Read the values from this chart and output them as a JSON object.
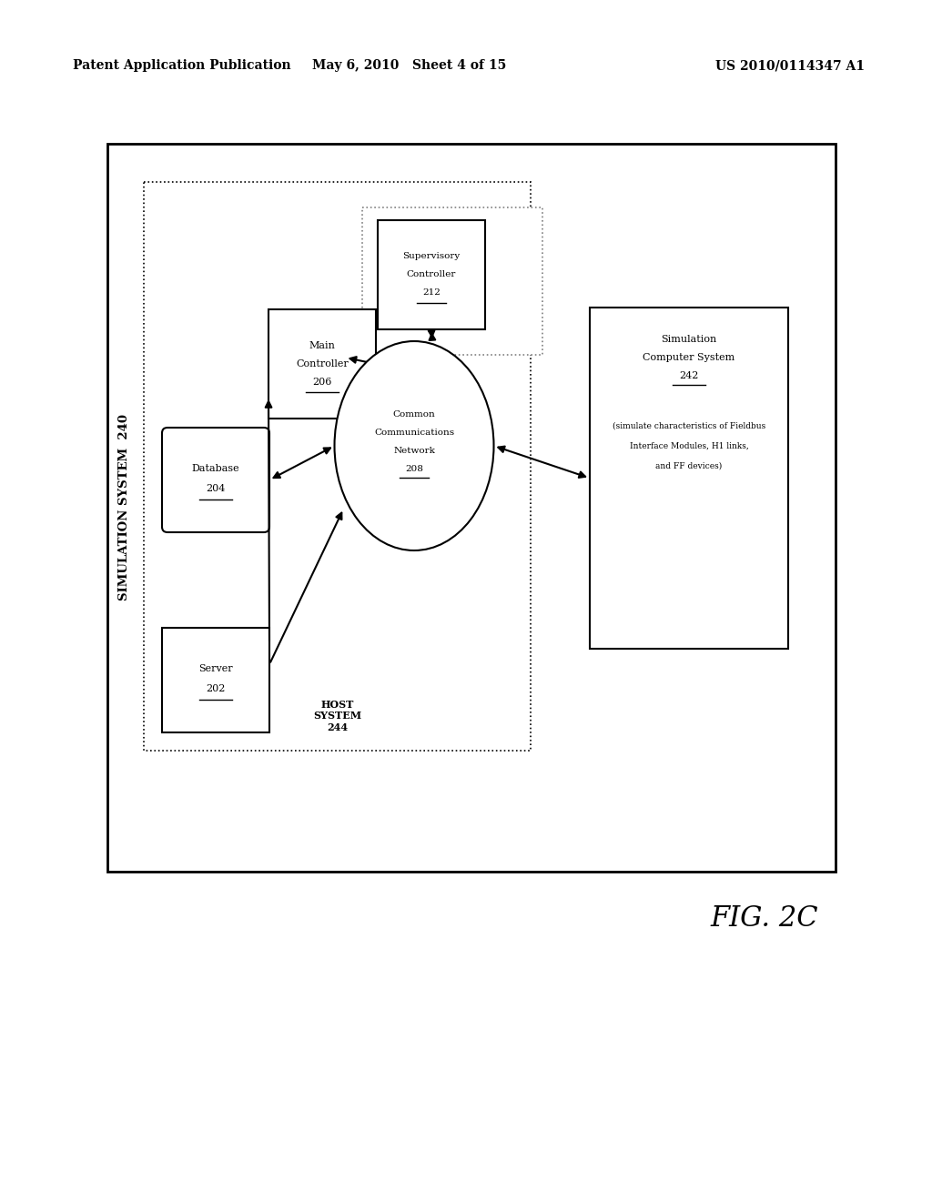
{
  "bg_color": "#ffffff",
  "header_left": "Patent Application Publication",
  "header_mid": "May 6, 2010   Sheet 4 of 15",
  "header_right": "US 2010/0114347 A1",
  "fig_label": "FIG. 2C",
  "outer_label": "SIMULATION SYSTEM  240",
  "host_label": "HOST\nSYSTEM\n244"
}
